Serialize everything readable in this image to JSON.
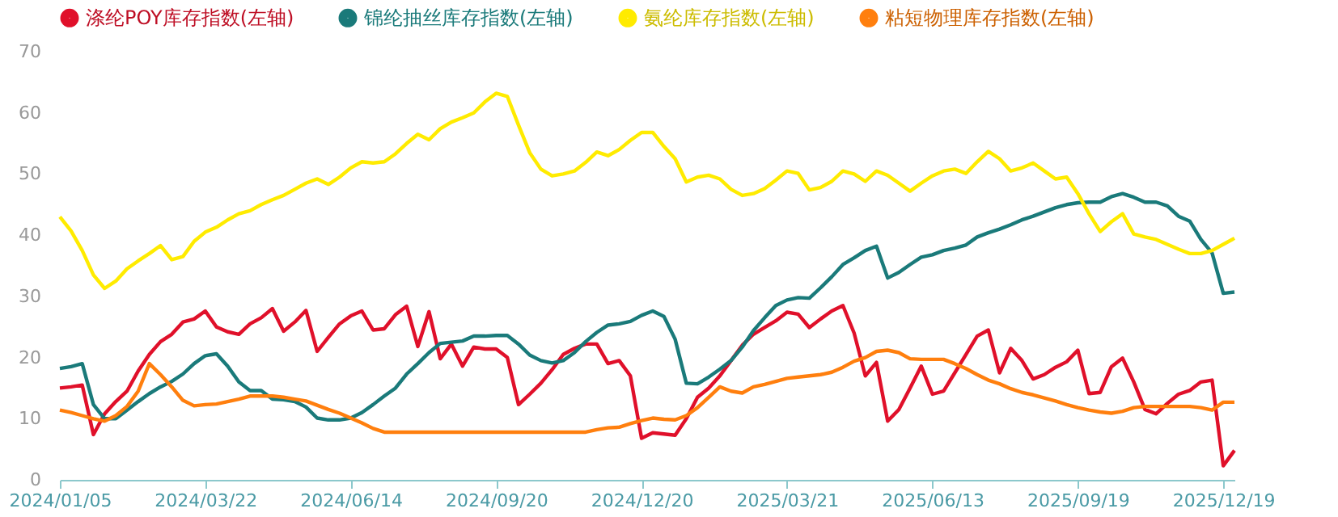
{
  "chart_data": {
    "type": "line",
    "categories": [
      "2024/01/05",
      null,
      null,
      null,
      null,
      null,
      null,
      null,
      null,
      null,
      null,
      null,
      null,
      "2024/03/22",
      null,
      null,
      null,
      null,
      null,
      null,
      null,
      null,
      null,
      null,
      null,
      null,
      "2024/06/14",
      null,
      null,
      null,
      null,
      null,
      null,
      null,
      null,
      null,
      null,
      null,
      null,
      "2024/09/20",
      null,
      null,
      null,
      null,
      null,
      null,
      null,
      null,
      null,
      null,
      null,
      null,
      "2024/12/20",
      null,
      null,
      null,
      null,
      null,
      null,
      null,
      null,
      null,
      null,
      null,
      null,
      "2025/03/21",
      null,
      null,
      null,
      null,
      null,
      null,
      null,
      null,
      null,
      null,
      null,
      null,
      "2025/06/13",
      null,
      null,
      null,
      null,
      null,
      null,
      null,
      null,
      null,
      null,
      null,
      null,
      "2025/09/19",
      null,
      null,
      null,
      null,
      null,
      null,
      null,
      null,
      null,
      null,
      null,
      null,
      "2025/12/19",
      null
    ],
    "series": [
      {
        "name": "涤纶POY库存指数(左轴)",
        "color": "#e0102a",
        "values": [
          15,
          15.2,
          15.5,
          7.4,
          10.8,
          12.8,
          14.5,
          17.8,
          20.5,
          22.6,
          23.8,
          25.8,
          26.3,
          27.6,
          25,
          24.2,
          23.8,
          25.5,
          26.5,
          28,
          24.3,
          25.8,
          27.7,
          21,
          23.3,
          25.5,
          26.8,
          27.6,
          24.5,
          24.7,
          27,
          28.4,
          21.8,
          27.5,
          19.8,
          22.2,
          18.6,
          21.7,
          21.4,
          21.4,
          20,
          12.3,
          14,
          15.8,
          18,
          20.5,
          21.5,
          22.2,
          22.2,
          19,
          19.5,
          17,
          6.8,
          7.7,
          7.5,
          7.3,
          10,
          13.5,
          15,
          17,
          19.5,
          22,
          23.8,
          24.9,
          26,
          27.4,
          27.1,
          24.9,
          26.3,
          27.6,
          28.5,
          24,
          17,
          19.2,
          9.6,
          11.5,
          15,
          18.6,
          14,
          14.5,
          17.5,
          20.5,
          23.5,
          24.5,
          17.5,
          21.5,
          19.5,
          16.5,
          17.2,
          18.4,
          19.3,
          21.2,
          14.1,
          14.3,
          18.5,
          19.9,
          16,
          11.5,
          10.8,
          12.5,
          14,
          14.6,
          16,
          16.3,
          2.3,
          4.8
        ]
      },
      {
        "name": "锦纶抽丝库存指数(左轴)",
        "color": "#1a7a7a",
        "values": [
          18.2,
          18.5,
          19,
          12.3,
          10,
          10,
          11.4,
          12.8,
          14.1,
          15.2,
          16.1,
          17.3,
          19,
          20.3,
          20.6,
          18.6,
          16,
          14.6,
          14.6,
          13.2,
          13.1,
          12.8,
          11.9,
          10.1,
          9.8,
          9.8,
          10.1,
          11,
          12.3,
          13.7,
          15,
          17.3,
          19,
          20.8,
          22.3,
          22.5,
          22.7,
          23.5,
          23.5,
          23.6,
          23.6,
          22.2,
          20.4,
          19.5,
          19.1,
          19.5,
          20.8,
          22.6,
          24.1,
          25.3,
          25.5,
          25.9,
          26.9,
          27.6,
          26.7,
          23,
          15.8,
          15.7,
          16.8,
          18.1,
          19.5,
          21.7,
          24.4,
          26.5,
          28.5,
          29.4,
          29.8,
          29.7,
          31.4,
          33.2,
          35.2,
          36.3,
          37.5,
          38.2,
          33,
          33.9,
          35.2,
          36.4,
          36.8,
          37.5,
          37.9,
          38.4,
          39.7,
          40.4,
          41,
          41.7,
          42.5,
          43.1,
          43.8,
          44.5,
          45,
          45.3,
          45.4,
          45.4,
          46.3,
          46.8,
          46.2,
          45.4,
          45.4,
          44.8,
          43.1,
          42.3,
          39.3,
          37.1,
          30.5,
          30.7
        ]
      },
      {
        "name": "氨纶库存指数(左轴)",
        "color": "#ffeb00",
        "values": [
          43,
          40.7,
          37.5,
          33.5,
          31.3,
          32.5,
          34.5,
          35.8,
          37,
          38.3,
          36,
          36.5,
          39,
          40.5,
          41.3,
          42.5,
          43.5,
          44,
          45,
          45.8,
          46.5,
          47.5,
          48.5,
          49.2,
          48.3,
          49.5,
          51,
          52,
          51.8,
          52,
          53.3,
          55,
          56.5,
          55.6,
          57.4,
          58.5,
          59.2,
          60,
          61.8,
          63.2,
          62.7,
          58,
          53.5,
          50.8,
          49.7,
          50,
          50.5,
          51.9,
          53.6,
          53,
          54,
          55.5,
          56.8,
          56.8,
          54.5,
          52.5,
          48.7,
          49.5,
          49.8,
          49.2,
          47.5,
          46.5,
          46.8,
          47.6,
          49,
          50.5,
          50.1,
          47.4,
          47.8,
          48.8,
          50.5,
          50,
          48.8,
          50.5,
          49.8,
          48.5,
          47.2,
          48.5,
          49.7,
          50.5,
          50.8,
          50.1,
          52,
          53.7,
          52.5,
          50.5,
          51,
          51.8,
          50.5,
          49.2,
          49.5,
          46.8,
          43.5,
          40.6,
          42.2,
          43.5,
          40.2,
          39.7,
          39.3,
          38.5,
          37.7,
          37,
          37,
          37.5,
          38.5,
          39.5
        ]
      },
      {
        "name": "粘短物理库存指数(左轴)",
        "color": "#ff7f0e",
        "values": [
          11.4,
          11,
          10.5,
          10,
          9.6,
          10.5,
          12,
          14.5,
          19,
          17.2,
          15.2,
          13,
          12.1,
          12.3,
          12.4,
          12.8,
          13.2,
          13.7,
          13.7,
          13.7,
          13.5,
          13.2,
          12.9,
          12.2,
          11.5,
          10.9,
          10.1,
          9.3,
          8.4,
          7.8,
          7.8,
          7.8,
          7.8,
          7.8,
          7.8,
          7.8,
          7.8,
          7.8,
          7.8,
          7.8,
          7.8,
          7.8,
          7.8,
          7.8,
          7.8,
          7.8,
          7.8,
          7.8,
          8.2,
          8.5,
          8.6,
          9.2,
          9.7,
          10.1,
          9.9,
          9.8,
          10.5,
          11.8,
          13.5,
          15.2,
          14.5,
          14.2,
          15.2,
          15.6,
          16.1,
          16.6,
          16.8,
          17,
          17.2,
          17.6,
          18.4,
          19.4,
          20,
          21,
          21.2,
          20.8,
          19.8,
          19.7,
          19.7,
          19.7,
          19,
          18.2,
          17.2,
          16.3,
          15.7,
          14.9,
          14.3,
          13.9,
          13.4,
          12.9,
          12.3,
          11.8,
          11.4,
          11.1,
          10.9,
          11.2,
          11.8,
          12,
          12,
          12,
          12,
          12,
          11.8,
          11.4,
          12.7,
          12.7
        ]
      }
    ],
    "ylim": [
      0,
      70
    ],
    "yticks": [
      0,
      10,
      20,
      30,
      40,
      50,
      60,
      70
    ],
    "grid": false,
    "legend": "top",
    "marker": "none",
    "line_style": "solid"
  }
}
